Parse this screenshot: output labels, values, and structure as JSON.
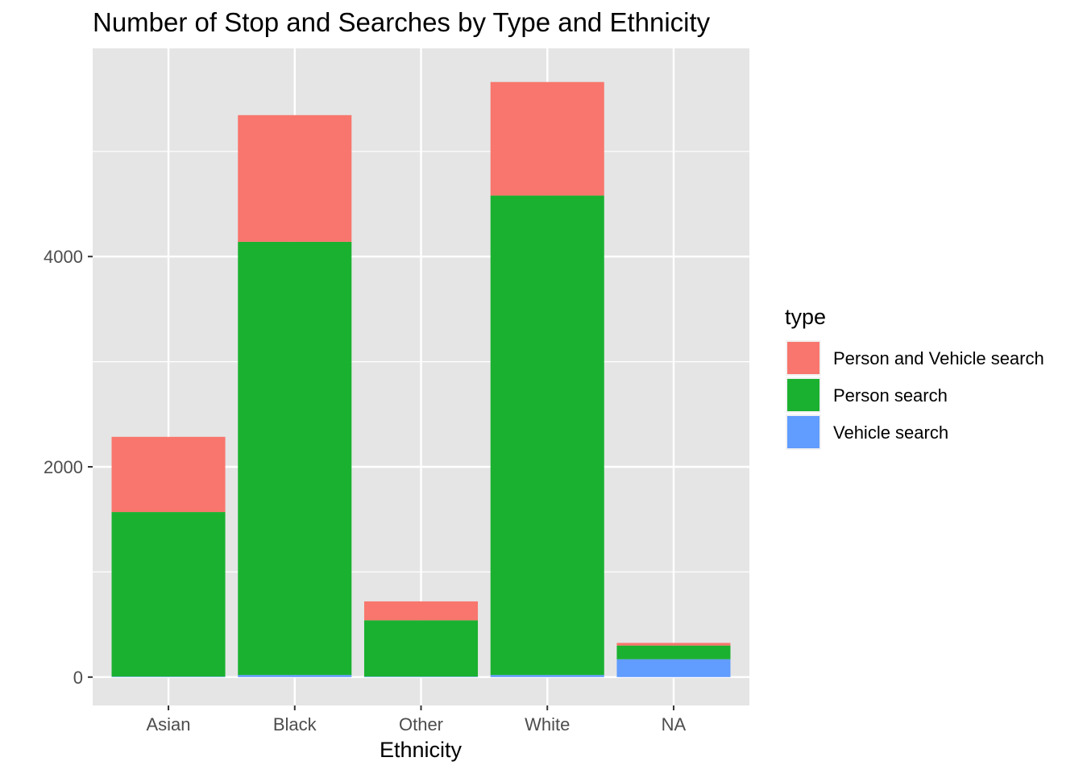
{
  "chart_data": {
    "type": "bar",
    "stacked": true,
    "title": "Number of Stop and Searches by Type and Ethnicity",
    "xlabel": "Ethnicity",
    "ylabel": "",
    "categories": [
      "Asian",
      "Black",
      "Other",
      "White",
      "NA"
    ],
    "y_ticks": [
      0,
      2000,
      4000
    ],
    "y_minor_ticks": [
      1000,
      3000,
      5000
    ],
    "ylim": [
      -270,
      5980
    ],
    "series": [
      {
        "name": "Vehicle search",
        "color": "#619CFF",
        "values": [
          5,
          20,
          5,
          20,
          170
        ]
      },
      {
        "name": "Person search",
        "color": "#1BB130",
        "values": [
          1565,
          4120,
          535,
          4560,
          130
        ]
      },
      {
        "name": "Person and Vehicle search",
        "color": "#F8766D",
        "values": [
          715,
          1205,
          180,
          1080,
          25
        ]
      }
    ],
    "legend": {
      "title": "type",
      "placement": "right",
      "entries": [
        "Person and Vehicle search",
        "Person search",
        "Vehicle search"
      ]
    },
    "panel_background": "#E5E5E5",
    "grid": true
  }
}
